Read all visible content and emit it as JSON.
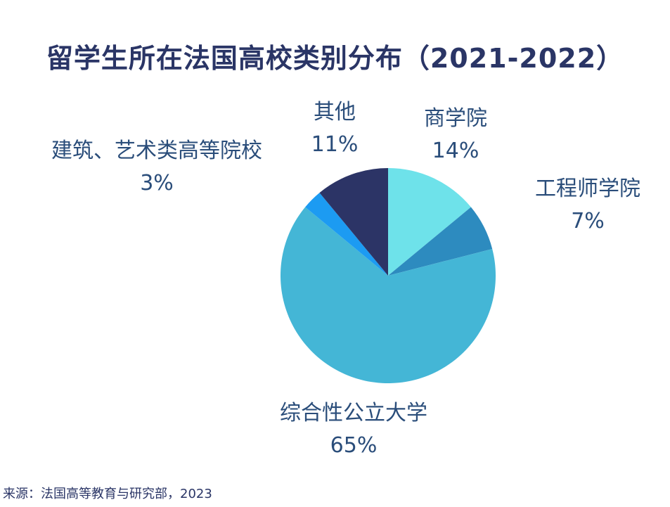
{
  "chart_data": {
    "type": "pie",
    "title": "留学生所在法国高校类别分布（2021-2022）",
    "slices": [
      {
        "label": "商学院",
        "value": 14,
        "value_label": "14%",
        "color": "#6ee2ea"
      },
      {
        "label": "工程师学院",
        "value": 7,
        "value_label": "7%",
        "color": "#2d8bbf"
      },
      {
        "label": "综合性公立大学",
        "value": 65,
        "value_label": "65%",
        "color": "#44b6d6"
      },
      {
        "label": "建筑、艺术类高等院校",
        "value": 3,
        "value_label": "3%",
        "color": "#1c9bf2"
      },
      {
        "label": "其他",
        "value": 11,
        "value_label": "11%",
        "color": "#2c3466"
      }
    ],
    "start_angle": "12 o'clock",
    "direction": "clockwise",
    "legend": "none"
  },
  "source": "来源：法国高等教育与研究部，2023"
}
